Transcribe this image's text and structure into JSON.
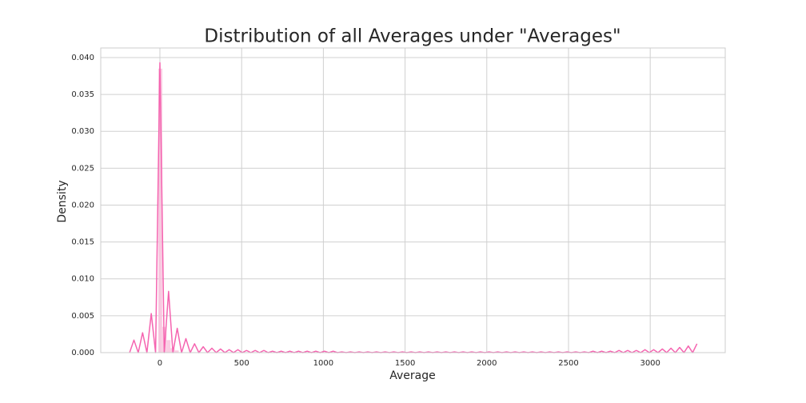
{
  "chart_data": {
    "type": "line",
    "title": "Distribution of all Averages under \"Averages\"",
    "x_label": "Average",
    "y_label": "Density",
    "xlim": [
      -362,
      3459
    ],
    "ylim": [
      0,
      0.0413
    ],
    "xticks": [
      0,
      500,
      1000,
      1500,
      2000,
      2500,
      3000
    ],
    "yticks": [
      {
        "value": 0,
        "label": "0.000"
      },
      {
        "value": 0.005,
        "label": "0.005"
      },
      {
        "value": 0.01,
        "label": "0.010"
      },
      {
        "value": 0.015,
        "label": "0.015"
      },
      {
        "value": 0.02,
        "label": "0.020"
      },
      {
        "value": 0.025,
        "label": "0.025"
      },
      {
        "value": 0.03,
        "label": "0.030"
      },
      {
        "value": 0.035,
        "label": "0.035"
      },
      {
        "value": 0.04,
        "label": "0.040"
      }
    ],
    "grid": true,
    "histogram": {
      "color": "#f9c0dc",
      "bins": [
        -10,
        15,
        40,
        65,
        90,
        115
      ],
      "values": [
        0.0385,
        0.0035,
        0.0017,
        0.0006,
        0.0003
      ]
    },
    "series": [
      {
        "color": "#f564b0",
        "x": [
          -185.5,
          -159,
          -132.5,
          -106,
          -79.5,
          -53,
          -26.5,
          0,
          26.5,
          53,
          79.5,
          106,
          132.5,
          159,
          185.5,
          212,
          238.5,
          265,
          291.5,
          318,
          344.5,
          371,
          397.5,
          424,
          450.5,
          477,
          503.5,
          530,
          556.5,
          583,
          609.5,
          636,
          662.5,
          689,
          715.5,
          742,
          768.5,
          795,
          821.5,
          848,
          874.5,
          901,
          927.5,
          954,
          980.5,
          1007,
          1033.5,
          1060,
          1086.5,
          1113,
          1139.5,
          1166,
          1192.5,
          1219,
          1245.5,
          1272,
          1298.5,
          1325,
          1351.5,
          1378,
          1404.5,
          1431,
          1457.5,
          1484,
          1510.5,
          1537,
          1563.5,
          1590,
          1616.5,
          1643,
          1669.5,
          1696,
          1722.5,
          1749,
          1775.5,
          1802,
          1828.5,
          1855,
          1881.5,
          1908,
          1934.5,
          1961,
          1987.5,
          2014,
          2040.5,
          2067,
          2093.5,
          2120,
          2146.5,
          2173,
          2199.5,
          2226,
          2252.5,
          2279,
          2305.5,
          2332,
          2358.5,
          2385,
          2411.5,
          2438,
          2464.5,
          2491,
          2517.5,
          2544,
          2570.5,
          2597,
          2623.5,
          2650,
          2676.5,
          2703,
          2729.5,
          2756,
          2782.5,
          2809,
          2835.5,
          2862,
          2888.5,
          2915,
          2941.5,
          2968,
          2994.5,
          3021,
          3047.5,
          3074,
          3100.5,
          3127,
          3153.5,
          3180,
          3206.5,
          3233,
          3259.5,
          3286
        ],
        "values": [
          0,
          0.0017,
          0,
          0.0027,
          0,
          0.0053,
          0,
          0.0393,
          0,
          0.0083,
          0,
          0.0033,
          0,
          0.0019,
          0,
          0.0012,
          0,
          0.0008,
          0,
          0.0006,
          0,
          0.0005,
          0,
          0.0004,
          0,
          0.0004,
          0,
          0.0003,
          0,
          0.0003,
          0,
          0.0003,
          0,
          0.0002,
          0,
          0.0002,
          0,
          0.0002,
          0,
          0.0002,
          0,
          0.0002,
          0,
          0.0002,
          0,
          0.0002,
          0,
          0.0002,
          0,
          0.0001,
          0,
          0.0001,
          0,
          0.0001,
          0,
          0.0001,
          0,
          0.0001,
          0,
          0.0001,
          0,
          0.0001,
          0,
          0.0001,
          0,
          0.0001,
          0,
          0.0001,
          0,
          0.0001,
          0,
          0.0001,
          0,
          0.0001,
          0,
          0.0001,
          0,
          0.0001,
          0,
          0.0001,
          0,
          0.0001,
          0,
          0.0001,
          0,
          0.0001,
          0,
          0.0001,
          0,
          0.0001,
          0,
          0.0001,
          0,
          0.0001,
          0,
          0.0001,
          0,
          0.0001,
          0,
          0.0001,
          0,
          0.0001,
          0,
          0.0001,
          0,
          0.0001,
          0,
          0.0002,
          0,
          0.0002,
          0,
          0.0002,
          0,
          0.0003,
          0,
          0.0003,
          0,
          0.0003,
          0,
          0.0004,
          0,
          0.0004,
          0,
          0.0005,
          0,
          0.0006,
          0,
          0.0007,
          0,
          0.0009,
          0,
          0.0012
        ]
      }
    ]
  }
}
